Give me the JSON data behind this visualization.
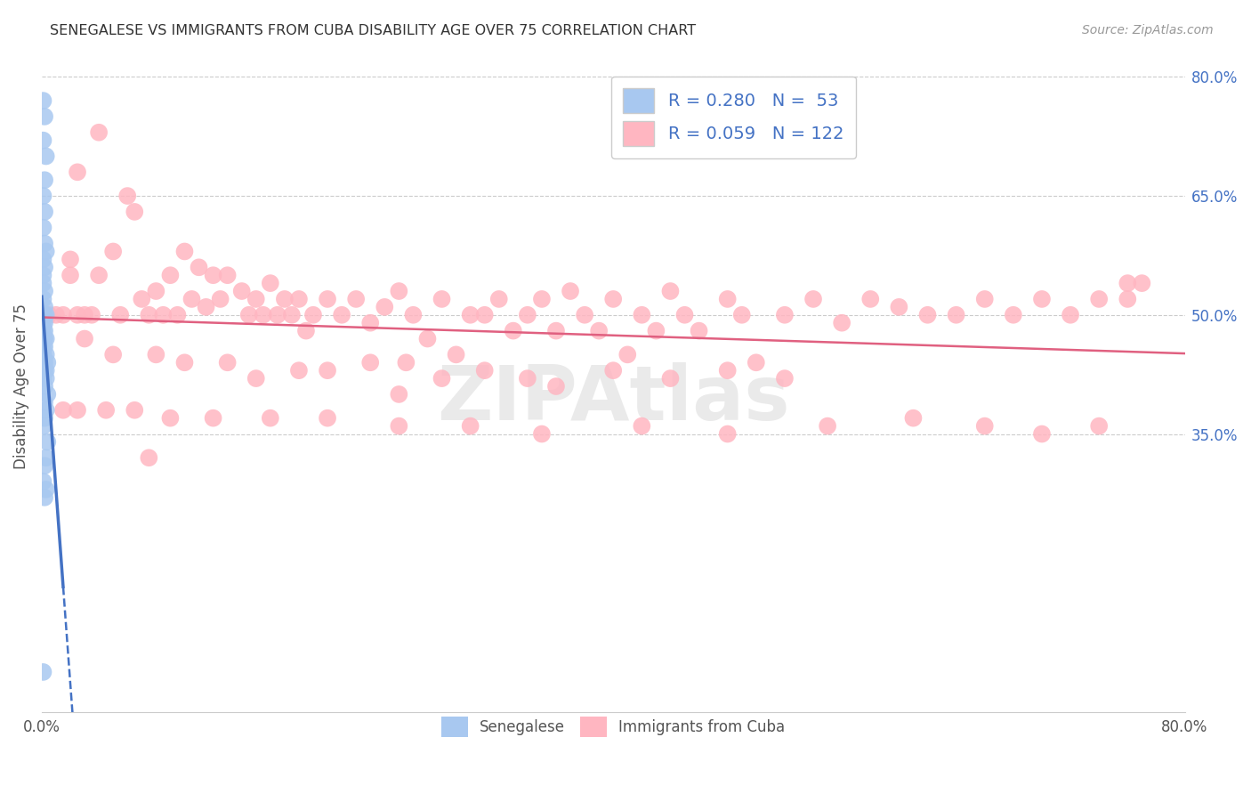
{
  "title": "SENEGALESE VS IMMIGRANTS FROM CUBA DISABILITY AGE OVER 75 CORRELATION CHART",
  "source": "Source: ZipAtlas.com",
  "ylabel": "Disability Age Over 75",
  "xlim": [
    0.0,
    0.8
  ],
  "ylim": [
    0.0,
    0.82
  ],
  "xticks": [
    0.0,
    0.2,
    0.4,
    0.6,
    0.8
  ],
  "xticklabels": [
    "0.0%",
    "",
    "",
    "",
    "80.0%"
  ],
  "ytick_right_labels": [
    "80.0%",
    "65.0%",
    "50.0%",
    "35.0%"
  ],
  "ytick_right_values": [
    0.8,
    0.65,
    0.5,
    0.35
  ],
  "senegalese_R": 0.28,
  "senegalese_N": 53,
  "cuba_R": 0.059,
  "cuba_N": 122,
  "senegalese_color": "#a8c8f0",
  "senegalese_line_color": "#4472c4",
  "cuba_color": "#ffb6c1",
  "cuba_line_color": "#e06080",
  "grid_color": "#cccccc",
  "background_color": "#ffffff",
  "sen_x": [
    0.001,
    0.002,
    0.001,
    0.003,
    0.002,
    0.001,
    0.002,
    0.001,
    0.002,
    0.003,
    0.001,
    0.002,
    0.001,
    0.001,
    0.002,
    0.001,
    0.002,
    0.001,
    0.001,
    0.002,
    0.003,
    0.001,
    0.002,
    0.001,
    0.002,
    0.001,
    0.003,
    0.002,
    0.001,
    0.002,
    0.001,
    0.003,
    0.002,
    0.001,
    0.004,
    0.003,
    0.002,
    0.001,
    0.003,
    0.002,
    0.004,
    0.002,
    0.003,
    0.002,
    0.001,
    0.004,
    0.003,
    0.002,
    0.001,
    0.003,
    0.002,
    0.001,
    0.001
  ],
  "sen_y": [
    0.77,
    0.75,
    0.72,
    0.7,
    0.67,
    0.65,
    0.63,
    0.61,
    0.59,
    0.58,
    0.57,
    0.56,
    0.55,
    0.54,
    0.53,
    0.52,
    0.51,
    0.5,
    0.5,
    0.5,
    0.5,
    0.49,
    0.49,
    0.48,
    0.48,
    0.47,
    0.47,
    0.47,
    0.46,
    0.46,
    0.45,
    0.45,
    0.44,
    0.44,
    0.44,
    0.43,
    0.43,
    0.42,
    0.42,
    0.41,
    0.4,
    0.39,
    0.38,
    0.37,
    0.36,
    0.34,
    0.32,
    0.31,
    0.29,
    0.28,
    0.27,
    0.05,
    0.45
  ],
  "cuba_x": [
    0.005,
    0.015,
    0.02,
    0.025,
    0.025,
    0.03,
    0.035,
    0.04,
    0.05,
    0.055,
    0.06,
    0.065,
    0.07,
    0.075,
    0.08,
    0.085,
    0.09,
    0.095,
    0.1,
    0.105,
    0.11,
    0.115,
    0.12,
    0.125,
    0.13,
    0.14,
    0.145,
    0.15,
    0.155,
    0.16,
    0.165,
    0.17,
    0.175,
    0.18,
    0.185,
    0.19,
    0.2,
    0.21,
    0.22,
    0.23,
    0.24,
    0.25,
    0.255,
    0.26,
    0.27,
    0.28,
    0.29,
    0.3,
    0.31,
    0.32,
    0.33,
    0.34,
    0.35,
    0.36,
    0.37,
    0.38,
    0.39,
    0.4,
    0.41,
    0.42,
    0.43,
    0.44,
    0.45,
    0.46,
    0.48,
    0.49,
    0.5,
    0.52,
    0.54,
    0.56,
    0.58,
    0.6,
    0.62,
    0.64,
    0.66,
    0.68,
    0.7,
    0.72,
    0.74,
    0.76,
    0.01,
    0.02,
    0.03,
    0.05,
    0.08,
    0.1,
    0.13,
    0.15,
    0.18,
    0.2,
    0.23,
    0.25,
    0.28,
    0.31,
    0.34,
    0.36,
    0.4,
    0.44,
    0.48,
    0.52,
    0.015,
    0.025,
    0.045,
    0.065,
    0.09,
    0.12,
    0.16,
    0.2,
    0.25,
    0.3,
    0.35,
    0.42,
    0.48,
    0.55,
    0.61,
    0.66,
    0.7,
    0.74,
    0.76,
    0.77,
    0.04,
    0.075
  ],
  "cuba_y": [
    0.5,
    0.5,
    0.57,
    0.5,
    0.68,
    0.5,
    0.5,
    0.55,
    0.58,
    0.5,
    0.65,
    0.63,
    0.52,
    0.5,
    0.53,
    0.5,
    0.55,
    0.5,
    0.58,
    0.52,
    0.56,
    0.51,
    0.55,
    0.52,
    0.55,
    0.53,
    0.5,
    0.52,
    0.5,
    0.54,
    0.5,
    0.52,
    0.5,
    0.52,
    0.48,
    0.5,
    0.52,
    0.5,
    0.52,
    0.49,
    0.51,
    0.53,
    0.44,
    0.5,
    0.47,
    0.52,
    0.45,
    0.5,
    0.5,
    0.52,
    0.48,
    0.5,
    0.52,
    0.48,
    0.53,
    0.5,
    0.48,
    0.52,
    0.45,
    0.5,
    0.48,
    0.53,
    0.5,
    0.48,
    0.52,
    0.5,
    0.44,
    0.5,
    0.52,
    0.49,
    0.52,
    0.51,
    0.5,
    0.5,
    0.52,
    0.5,
    0.52,
    0.5,
    0.52,
    0.54,
    0.5,
    0.55,
    0.47,
    0.45,
    0.45,
    0.44,
    0.44,
    0.42,
    0.43,
    0.43,
    0.44,
    0.4,
    0.42,
    0.43,
    0.42,
    0.41,
    0.43,
    0.42,
    0.43,
    0.42,
    0.38,
    0.38,
    0.38,
    0.38,
    0.37,
    0.37,
    0.37,
    0.37,
    0.36,
    0.36,
    0.35,
    0.36,
    0.35,
    0.36,
    0.37,
    0.36,
    0.35,
    0.36,
    0.52,
    0.54,
    0.73,
    0.32
  ]
}
